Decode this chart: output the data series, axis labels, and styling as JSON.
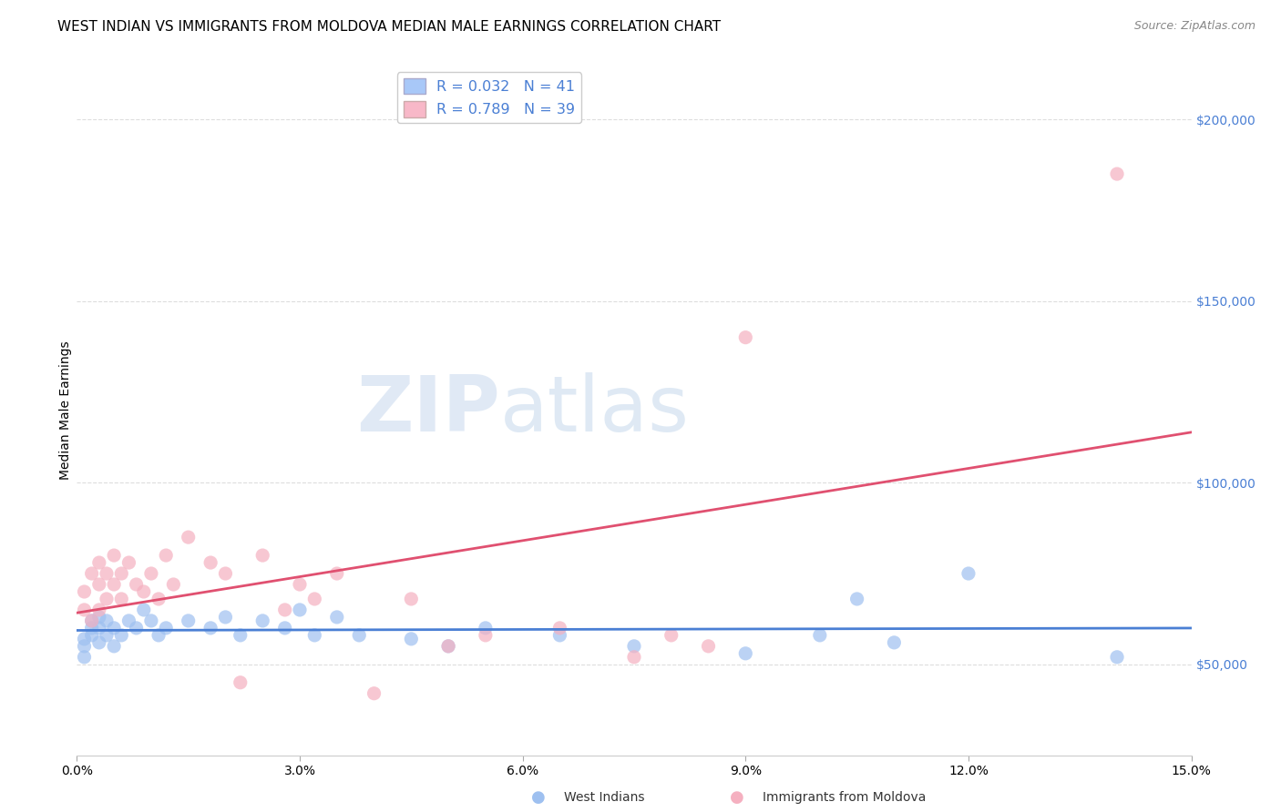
{
  "title": "WEST INDIAN VS IMMIGRANTS FROM MOLDOVA MEDIAN MALE EARNINGS CORRELATION CHART",
  "source": "Source: ZipAtlas.com",
  "ylabel": "Median Male Earnings",
  "watermark": "ZIPatlas",
  "xlim": [
    0.0,
    0.15
  ],
  "ylim": [
    25000,
    215000
  ],
  "xticks": [
    0.0,
    0.03,
    0.06,
    0.09,
    0.12,
    0.15
  ],
  "ytick_labels_right": [
    "$50,000",
    "$100,000",
    "$150,000",
    "$200,000"
  ],
  "ytick_values_right": [
    50000,
    100000,
    150000,
    200000
  ],
  "legend_entry1": "R = 0.032   N = 41",
  "legend_entry2": "R = 0.789   N = 39",
  "legend_label1": "West Indians",
  "legend_label2": "Immigrants from Moldova",
  "blue_scatter_color": "#9ec0f0",
  "pink_scatter_color": "#f5b0c0",
  "blue_line_color": "#4a7fd4",
  "pink_line_color": "#e05070",
  "legend_blue_color": "#a8c8f8",
  "legend_pink_color": "#f8b8c8",
  "legend_text_color": "#4a7fd4",
  "background_color": "#ffffff",
  "grid_color": "#dddddd",
  "title_fontsize": 11,
  "axis_label_fontsize": 10,
  "tick_fontsize": 10,
  "blue_x": [
    0.001,
    0.001,
    0.001,
    0.002,
    0.002,
    0.002,
    0.003,
    0.003,
    0.003,
    0.004,
    0.004,
    0.005,
    0.005,
    0.006,
    0.007,
    0.008,
    0.009,
    0.01,
    0.011,
    0.012,
    0.015,
    0.018,
    0.02,
    0.022,
    0.025,
    0.028,
    0.03,
    0.032,
    0.035,
    0.038,
    0.045,
    0.05,
    0.055,
    0.065,
    0.075,
    0.09,
    0.1,
    0.105,
    0.11,
    0.12,
    0.14
  ],
  "blue_y": [
    52000,
    55000,
    57000,
    58000,
    60000,
    62000,
    56000,
    60000,
    63000,
    58000,
    62000,
    55000,
    60000,
    58000,
    62000,
    60000,
    65000,
    62000,
    58000,
    60000,
    62000,
    60000,
    63000,
    58000,
    62000,
    60000,
    65000,
    58000,
    63000,
    58000,
    57000,
    55000,
    60000,
    58000,
    55000,
    53000,
    58000,
    68000,
    56000,
    75000,
    52000
  ],
  "pink_x": [
    0.001,
    0.001,
    0.002,
    0.002,
    0.003,
    0.003,
    0.003,
    0.004,
    0.004,
    0.005,
    0.005,
    0.006,
    0.006,
    0.007,
    0.008,
    0.009,
    0.01,
    0.011,
    0.012,
    0.013,
    0.015,
    0.018,
    0.02,
    0.022,
    0.025,
    0.028,
    0.03,
    0.032,
    0.035,
    0.04,
    0.045,
    0.05,
    0.055,
    0.065,
    0.075,
    0.08,
    0.085,
    0.09,
    0.14
  ],
  "pink_y": [
    65000,
    70000,
    62000,
    75000,
    65000,
    72000,
    78000,
    68000,
    75000,
    72000,
    80000,
    68000,
    75000,
    78000,
    72000,
    70000,
    75000,
    68000,
    80000,
    72000,
    85000,
    78000,
    75000,
    45000,
    80000,
    65000,
    72000,
    68000,
    75000,
    42000,
    68000,
    55000,
    58000,
    60000,
    52000,
    58000,
    55000,
    140000,
    185000
  ]
}
